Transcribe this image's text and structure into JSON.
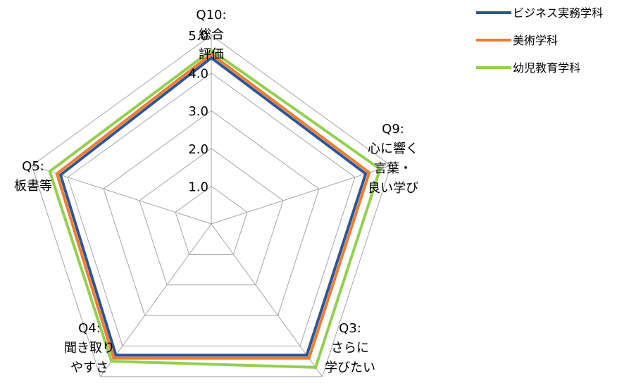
{
  "chart_data": {
    "type": "radar",
    "axes": [
      {
        "lines": [
          "Q10:",
          "総合",
          "評価"
        ]
      },
      {
        "lines": [
          "Q9:",
          "心に響く",
          "言葉・",
          "良い学び"
        ]
      },
      {
        "lines": [
          "Q3:",
          "さらに",
          "学びたい"
        ]
      },
      {
        "lines": [
          "Q4:",
          "聞き取り",
          "やすさ"
        ]
      },
      {
        "lines": [
          "Q5:",
          "板書等"
        ]
      }
    ],
    "ticks": [
      "1.0",
      "2.0",
      "3.0",
      "4.0",
      "5.0"
    ],
    "range": [
      0,
      5
    ],
    "series": [
      {
        "name": "ビジネス実務学科",
        "color": "#2F5496",
        "values": [
          4.4,
          4.3,
          4.3,
          4.3,
          4.2
        ]
      },
      {
        "name": "美術学科",
        "color": "#ED7D31",
        "values": [
          4.5,
          4.4,
          4.4,
          4.4,
          4.3
        ]
      },
      {
        "name": "幼児教育学科",
        "color": "#92D050",
        "values": [
          4.6,
          4.7,
          4.7,
          4.5,
          4.5
        ]
      }
    ],
    "grid": true,
    "legend_position": "top-right"
  }
}
